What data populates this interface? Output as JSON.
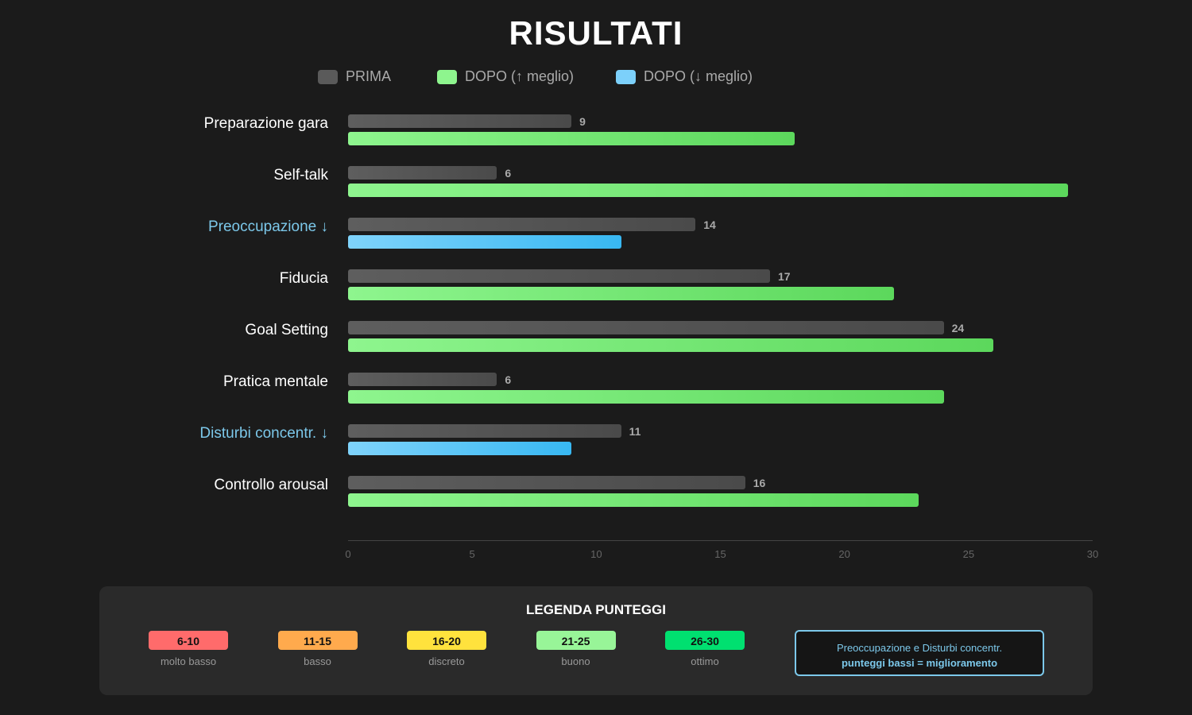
{
  "chart_data": {
    "type": "bar",
    "orientation": "horizontal",
    "title": "RISULTATI",
    "categories": [
      "Preparazione gara",
      "Self-talk",
      "Preoccupazione ↓",
      "Fiducia",
      "Goal Setting",
      "Pratica mentale",
      "Disturbi concentr. ↓",
      "Controllo arousal"
    ],
    "reversed": [
      false,
      false,
      true,
      false,
      false,
      false,
      true,
      false
    ],
    "series": [
      {
        "name": "PRIMA",
        "values": [
          9,
          6,
          14,
          17,
          24,
          6,
          11,
          16
        ]
      },
      {
        "name": "DOPO",
        "values": [
          18,
          29,
          11,
          22,
          26,
          24,
          9,
          23
        ]
      }
    ],
    "legend": [
      {
        "label": "PRIMA",
        "color": "#5a5a5a"
      },
      {
        "label": "DOPO (↑ meglio)",
        "color": "#8ef58e"
      },
      {
        "label": "DOPO (↓ meglio)",
        "color": "#7cd0fa"
      }
    ],
    "xlim": [
      0,
      30
    ],
    "xticks": [
      0,
      5,
      10,
      15,
      20,
      25,
      30
    ],
    "grid": false,
    "legend_position": "top"
  },
  "colors": {
    "prima": "#5a5a5a",
    "dopo_up": "#7fec7f",
    "dopo_down": "#5ec6f5",
    "reversed_label": "#7cc8ea"
  },
  "score_legend": {
    "title": "LEGENDA PUNTEGGI",
    "ranges": [
      {
        "range": "6-10",
        "label": "molto basso",
        "color": "#ff6b6b"
      },
      {
        "range": "11-15",
        "label": "basso",
        "color": "#ffaa4d"
      },
      {
        "range": "16-20",
        "label": "discreto",
        "color": "#ffe23d"
      },
      {
        "range": "21-25",
        "label": "buono",
        "color": "#98f598"
      },
      {
        "range": "26-30",
        "label": "ottimo",
        "color": "#00e070"
      }
    ],
    "note_line1": "Preoccupazione e Disturbi concentr.",
    "note_line2": "punteggi bassi = miglioramento"
  }
}
